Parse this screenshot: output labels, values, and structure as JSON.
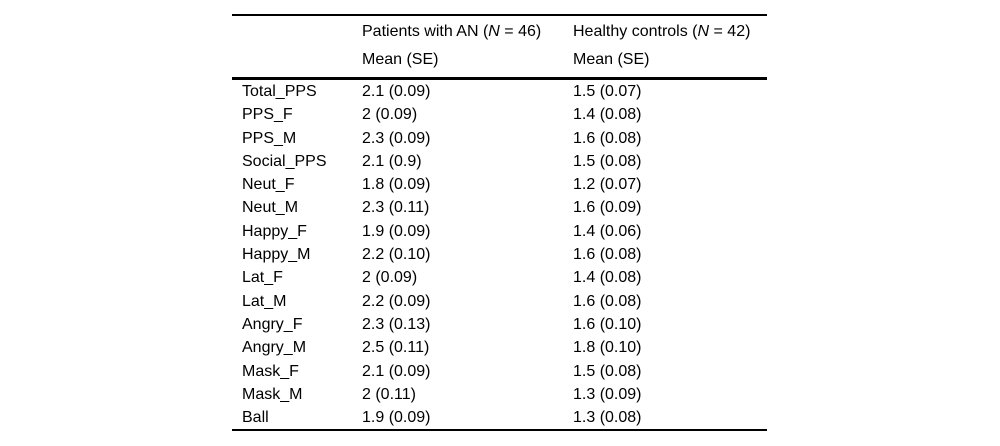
{
  "page": {
    "background": "#ffffff",
    "text_color": "#000000",
    "rule_color": "#000000"
  },
  "table": {
    "col_headers": [
      {
        "group_prefix": "Patients with AN (",
        "group_n": "N",
        "group_suffix": " = 46)",
        "subheader": "Mean (SE)"
      },
      {
        "group_prefix": "Healthy controls (",
        "group_n": "N",
        "group_suffix": " = 42)",
        "subheader": "Mean (SE)"
      }
    ],
    "rows": [
      {
        "label": "Total_PPS",
        "an_mean_se": "2.1 (0.09)",
        "hc_mean_se": "1.5 (0.07)"
      },
      {
        "label": "PPS_F",
        "an_mean_se": "2 (0.09)",
        "hc_mean_se": "1.4 (0.08)"
      },
      {
        "label": "PPS_M",
        "an_mean_se": "2.3 (0.09)",
        "hc_mean_se": "1.6 (0.08)"
      },
      {
        "label": "Social_PPS",
        "an_mean_se": "2.1 (0.9)",
        "hc_mean_se": "1.5 (0.08)"
      },
      {
        "label": "Neut_F",
        "an_mean_se": "1.8 (0.09)",
        "hc_mean_se": "1.2 (0.07)"
      },
      {
        "label": "Neut_M",
        "an_mean_se": "2.3 (0.11)",
        "hc_mean_se": "1.6 (0.09)"
      },
      {
        "label": "Happy_F",
        "an_mean_se": "1.9 (0.09)",
        "hc_mean_se": "1.4 (0.06)"
      },
      {
        "label": "Happy_M",
        "an_mean_se": "2.2 (0.10)",
        "hc_mean_se": "1.6 (0.08)"
      },
      {
        "label": "Lat_F",
        "an_mean_se": "2 (0.09)",
        "hc_mean_se": "1.4 (0.08)"
      },
      {
        "label": "Lat_M",
        "an_mean_se": "2.2 (0.09)",
        "hc_mean_se": "1.6 (0.08)"
      },
      {
        "label": "Angry_F",
        "an_mean_se": "2.3 (0.13)",
        "hc_mean_se": "1.6 (0.10)"
      },
      {
        "label": "Angry_M",
        "an_mean_se": "2.5 (0.11)",
        "hc_mean_se": "1.8 (0.10)"
      },
      {
        "label": "Mask_F",
        "an_mean_se": "2.1 (0.09)",
        "hc_mean_se": "1.5 (0.08)"
      },
      {
        "label": "Mask_M",
        "an_mean_se": "2 (0.11)",
        "hc_mean_se": "1.3 (0.09)"
      },
      {
        "label": "Ball",
        "an_mean_se": "1.9 (0.09)",
        "hc_mean_se": "1.3 (0.08)"
      }
    ]
  },
  "chart_data": {
    "type": "table",
    "title": "",
    "groups": [
      {
        "name": "Patients with AN",
        "n": 46
      },
      {
        "name": "Healthy controls",
        "n": 42
      }
    ],
    "measures": [
      "Total_PPS",
      "PPS_F",
      "PPS_M",
      "Social_PPS",
      "Neut_F",
      "Neut_M",
      "Happy_F",
      "Happy_M",
      "Lat_F",
      "Lat_M",
      "Angry_F",
      "Angry_M",
      "Mask_F",
      "Mask_M",
      "Ball"
    ],
    "series": [
      {
        "name": "Patients with AN (N = 46) Mean",
        "mean": [
          2.1,
          2,
          2.3,
          2.1,
          1.8,
          2.3,
          1.9,
          2.2,
          2,
          2.2,
          2.3,
          2.5,
          2.1,
          2,
          1.9
        ],
        "se": [
          0.09,
          0.09,
          0.09,
          0.9,
          0.09,
          0.11,
          0.09,
          0.1,
          0.09,
          0.09,
          0.13,
          0.11,
          0.09,
          0.11,
          0.09
        ]
      },
      {
        "name": "Healthy controls (N = 42) Mean",
        "mean": [
          1.5,
          1.4,
          1.6,
          1.5,
          1.2,
          1.6,
          1.4,
          1.6,
          1.4,
          1.6,
          1.6,
          1.8,
          1.5,
          1.3,
          1.3
        ],
        "se": [
          0.07,
          0.08,
          0.08,
          0.08,
          0.07,
          0.09,
          0.06,
          0.08,
          0.08,
          0.08,
          0.1,
          0.1,
          0.08,
          0.09,
          0.08
        ]
      }
    ]
  }
}
